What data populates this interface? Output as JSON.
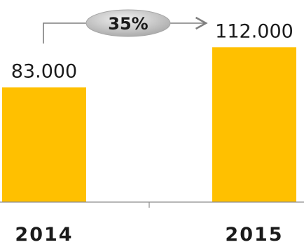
{
  "chart_data": {
    "type": "bar",
    "categories": [
      "2014",
      "2015"
    ],
    "values": [
      83000,
      112000
    ],
    "value_labels": [
      "83.000",
      "112.000"
    ],
    "growth_label": "35%",
    "title": "",
    "xlabel": "",
    "ylabel": "",
    "ylim": [
      0,
      135000
    ],
    "grid": false,
    "legend": "none",
    "colors": {
      "bar": "#FFC000",
      "axis": "#8c8c8c",
      "text": "#1a1a1a",
      "arrow": "#7f7f7f",
      "badge_light": "#f2f2f2",
      "badge_dark": "#a6a6a6"
    }
  }
}
